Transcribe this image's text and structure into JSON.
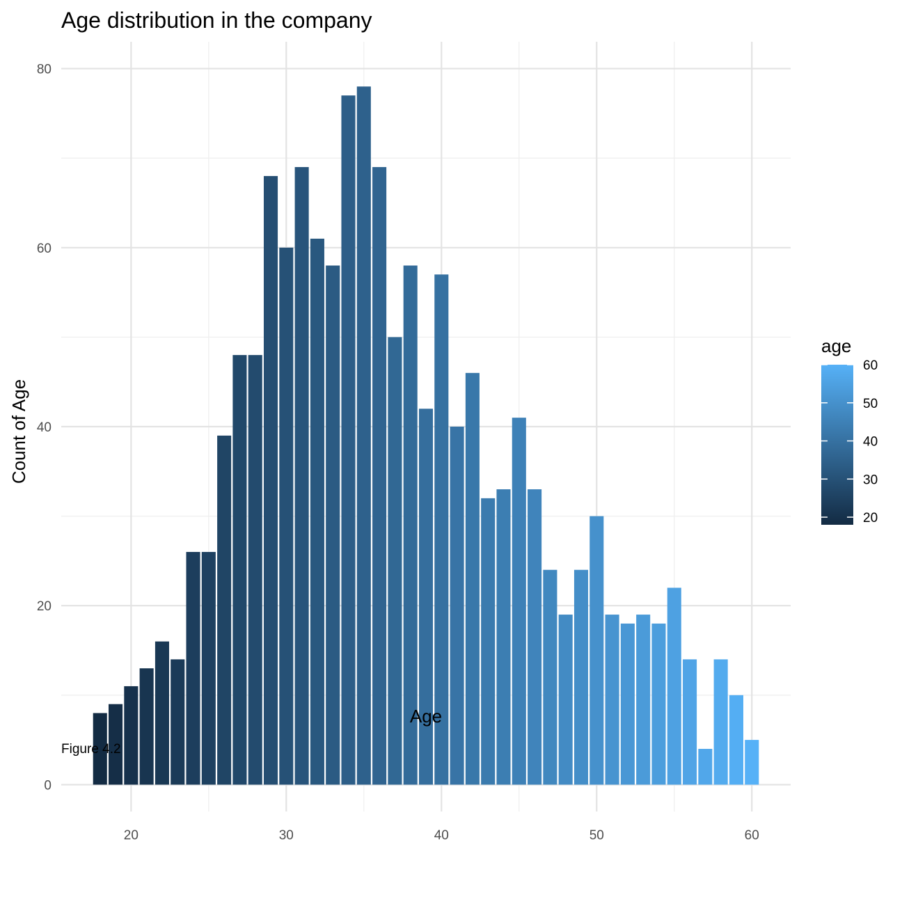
{
  "chart_data": {
    "type": "bar",
    "title": "Age distribution in the company",
    "xlabel": "Age",
    "ylabel": "Count of Age",
    "caption": "Figure 4.2",
    "x": [
      18,
      19,
      20,
      21,
      22,
      23,
      24,
      25,
      26,
      27,
      28,
      29,
      30,
      31,
      32,
      33,
      34,
      35,
      36,
      37,
      38,
      39,
      40,
      41,
      42,
      43,
      44,
      45,
      46,
      47,
      48,
      49,
      50,
      51,
      52,
      53,
      54,
      55,
      56,
      57,
      58,
      59,
      60
    ],
    "values": [
      8,
      9,
      11,
      13,
      16,
      14,
      26,
      26,
      39,
      48,
      48,
      68,
      60,
      69,
      61,
      58,
      77,
      78,
      69,
      50,
      58,
      42,
      57,
      40,
      46,
      32,
      33,
      41,
      33,
      24,
      19,
      24,
      30,
      19,
      18,
      19,
      18,
      22,
      14,
      4,
      14,
      10,
      5
    ],
    "xlim": [
      15.5,
      62.5
    ],
    "ylim": [
      -3.0,
      83.0
    ],
    "x_ticks": [
      "20",
      "30",
      "40",
      "50",
      "60"
    ],
    "y_ticks": [
      "0",
      "20",
      "40",
      "60",
      "80"
    ],
    "grid": true,
    "fill_scale": {
      "title": "age",
      "low_color": "#132B43",
      "high_color": "#56B1F7",
      "range": [
        18,
        60
      ],
      "breaks": [
        "20",
        "30",
        "40",
        "50",
        "60"
      ]
    },
    "legend_position": "right"
  }
}
